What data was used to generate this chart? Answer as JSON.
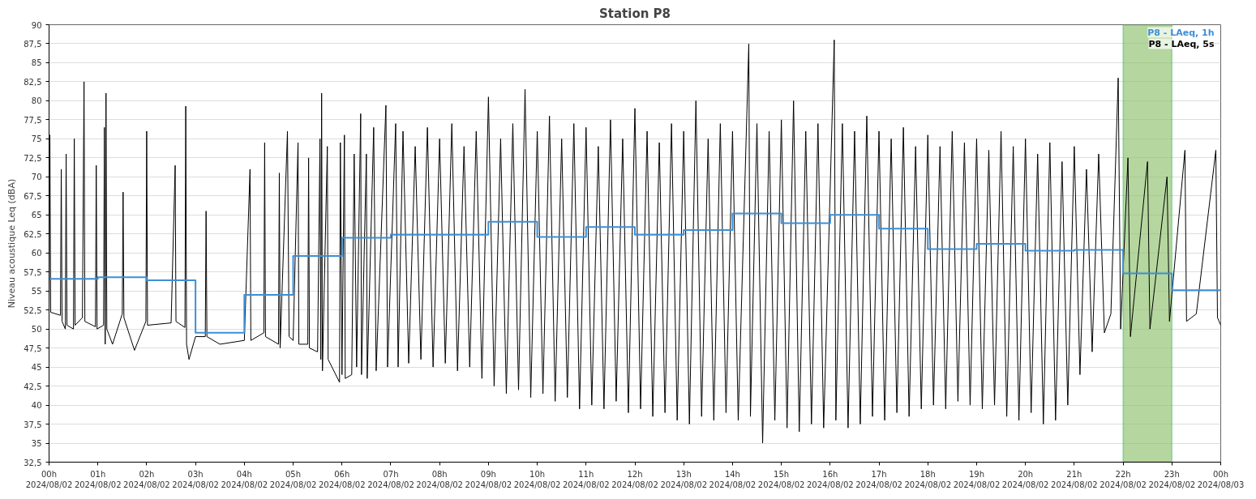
{
  "chart_data": {
    "type": "line",
    "title": "Station P8",
    "ylabel": "Niveau acoustique Leq (dBA)",
    "xlim": [
      "2024-08-02T00:00",
      "2024-08-03T00:00"
    ],
    "ylim": [
      32.5,
      90
    ],
    "xticks": [
      {
        "value": "2024-08-02T00:00",
        "label": "00h\n2024/08/02"
      },
      {
        "value": "2024-08-02T01:00",
        "label": "01h\n2024/08/02"
      },
      {
        "value": "2024-08-02T02:00",
        "label": "02h\n2024/08/02"
      },
      {
        "value": "2024-08-02T03:00",
        "label": "03h\n2024/08/02"
      },
      {
        "value": "2024-08-02T04:00",
        "label": "04h\n2024/08/02"
      },
      {
        "value": "2024-08-02T05:00",
        "label": "05h\n2024/08/02"
      },
      {
        "value": "2024-08-02T06:00",
        "label": "06h\n2024/08/02"
      },
      {
        "value": "2024-08-02T07:00",
        "label": "07h\n2024/08/02"
      },
      {
        "value": "2024-08-02T08:00",
        "label": "08h\n2024/08/02"
      },
      {
        "value": "2024-08-02T09:00",
        "label": "09h\n2024/08/02"
      },
      {
        "value": "2024-08-02T10:00",
        "label": "10h\n2024/08/02"
      },
      {
        "value": "2024-08-02T11:00",
        "label": "11h\n2024/08/02"
      },
      {
        "value": "2024-08-02T12:00",
        "label": "12h\n2024/08/02"
      },
      {
        "value": "2024-08-02T13:00",
        "label": "13h\n2024/08/02"
      },
      {
        "value": "2024-08-02T14:00",
        "label": "14h\n2024/08/02"
      },
      {
        "value": "2024-08-02T15:00",
        "label": "15h\n2024/08/02"
      },
      {
        "value": "2024-08-02T16:00",
        "label": "16h\n2024/08/02"
      },
      {
        "value": "2024-08-02T17:00",
        "label": "17h\n2024/08/02"
      },
      {
        "value": "2024-08-02T18:00",
        "label": "18h\n2024/08/02"
      },
      {
        "value": "2024-08-02T19:00",
        "label": "19h\n2024/08/02"
      },
      {
        "value": "2024-08-02T20:00",
        "label": "20h\n2024/08/02"
      },
      {
        "value": "2024-08-02T21:00",
        "label": "21h\n2024/08/02"
      },
      {
        "value": "2024-08-02T22:00",
        "label": "22h\n2024/08/02"
      },
      {
        "value": "2024-08-02T23:00",
        "label": "23h\n2024/08/02"
      },
      {
        "value": "2024-08-03T00:00",
        "label": "00h\n2024/08/03"
      }
    ],
    "yticks": [
      {
        "value": 32.5,
        "label": "32,5"
      },
      35,
      {
        "value": 37.5,
        "label": "37,5"
      },
      40,
      {
        "value": 42.5,
        "label": "42,5"
      },
      45,
      {
        "value": 47.5,
        "label": "47,5"
      },
      50,
      {
        "value": 52.5,
        "label": "52,5"
      },
      55,
      {
        "value": 57.5,
        "label": "57,5"
      },
      60,
      {
        "value": 62.5,
        "label": "62,5"
      },
      65,
      {
        "value": 67.5,
        "label": "67,5"
      },
      70,
      {
        "value": 72.5,
        "label": "72,5"
      },
      75,
      {
        "value": 77.5,
        "label": "77,5"
      },
      80,
      {
        "value": 82.5,
        "label": "82,5"
      },
      85,
      {
        "value": 87.5,
        "label": "87,5"
      },
      90
    ],
    "grid": "y",
    "legend": "top right",
    "line_style": "solid",
    "bands": [
      {
        "axis": "x",
        "from": "2024-08-02T22:00",
        "to": "2024-08-02T23:00",
        "color": "#8dc26c"
      }
    ],
    "series": [
      {
        "name": "P8 - LAeq, 1h",
        "type": "step",
        "color": "#3d8fd6",
        "x": [
          "2024-08-02T00:00",
          "2024-08-02T01:00",
          "2024-08-02T02:00",
          "2024-08-02T03:00",
          "2024-08-02T04:00",
          "2024-08-02T05:00",
          "2024-08-02T06:00",
          "2024-08-02T07:00",
          "2024-08-02T08:00",
          "2024-08-02T09:00",
          "2024-08-02T10:00",
          "2024-08-02T11:00",
          "2024-08-02T12:00",
          "2024-08-02T13:00",
          "2024-08-02T14:00",
          "2024-08-02T15:00",
          "2024-08-02T16:00",
          "2024-08-02T17:00",
          "2024-08-02T18:00",
          "2024-08-02T19:00",
          "2024-08-02T20:00",
          "2024-08-02T21:00",
          "2024-08-02T22:00",
          "2024-08-02T23:00",
          "2024-08-03T00:00"
        ],
        "values": [
          56.6,
          56.8,
          56.4,
          49.5,
          54.5,
          59.6,
          62.0,
          62.4,
          62.4,
          64.1,
          62.1,
          63.4,
          62.4,
          63.0,
          65.2,
          63.9,
          65.0,
          63.2,
          60.5,
          61.2,
          60.3,
          60.4,
          57.3,
          55.1,
          55.1
        ]
      },
      {
        "name": "P8 - LAeq, 5s",
        "color": "#000000",
        "x": [
          "2024-08-02T00:00",
          "2024-08-02T00:01",
          "2024-08-02T00:02",
          "2024-08-02T00:14",
          "2024-08-02T00:15",
          "2024-08-02T00:16",
          "2024-08-02T00:20",
          "2024-08-02T00:21",
          "2024-08-02T00:22",
          "2024-08-02T00:30",
          "2024-08-02T00:31",
          "2024-08-02T00:32",
          "2024-08-02T00:41",
          "2024-08-02T00:43",
          "2024-08-02T00:44",
          "2024-08-02T00:57",
          "2024-08-02T00:58",
          "2024-08-02T00:59",
          "2024-08-02T01:07",
          "2024-08-02T01:08",
          "2024-08-02T01:09",
          "2024-08-02T01:10",
          "2024-08-02T01:11",
          "2024-08-02T01:18",
          "2024-08-02T01:30",
          "2024-08-02T01:31",
          "2024-08-02T01:32",
          "2024-08-02T01:45",
          "2024-08-02T01:59",
          "2024-08-02T02:00",
          "2024-08-02T02:01",
          "2024-08-02T02:30",
          "2024-08-02T02:35",
          "2024-08-02T02:36",
          "2024-08-02T02:47",
          "2024-08-02T02:48",
          "2024-08-02T02:49",
          "2024-08-02T02:52",
          "2024-08-02T03:00",
          "2024-08-02T03:12",
          "2024-08-02T03:13",
          "2024-08-02T03:14",
          "2024-08-02T03:30",
          "2024-08-02T04:00",
          "2024-08-02T04:07",
          "2024-08-02T04:08",
          "2024-08-02T04:24",
          "2024-08-02T04:25",
          "2024-08-02T04:26",
          "2024-08-02T04:42",
          "2024-08-02T04:43",
          "2024-08-02T04:44",
          "2024-08-02T04:53",
          "2024-08-02T04:55",
          "2024-08-02T05:00",
          "2024-08-02T05:06",
          "2024-08-02T05:07",
          "2024-08-02T05:18",
          "2024-08-02T05:19",
          "2024-08-02T05:20",
          "2024-08-02T05:30",
          "2024-08-02T05:33",
          "2024-08-02T05:34",
          "2024-08-02T05:35",
          "2024-08-02T05:36",
          "2024-08-02T05:42",
          "2024-08-02T05:43",
          "2024-08-02T05:57",
          "2024-08-02T05:58",
          "2024-08-02T06:00",
          "2024-08-02T06:03",
          "2024-08-02T06:04",
          "2024-08-02T06:12",
          "2024-08-02T06:15",
          "2024-08-02T06:18",
          "2024-08-02T06:23",
          "2024-08-02T06:24",
          "2024-08-02T06:30",
          "2024-08-02T06:31",
          "2024-08-02T06:39",
          "2024-08-02T06:42",
          "2024-08-02T06:54",
          "2024-08-02T06:56",
          "2024-08-02T07:06",
          "2024-08-02T07:09",
          "2024-08-02T07:15",
          "2024-08-02T07:22",
          "2024-08-02T07:30",
          "2024-08-02T07:37",
          "2024-08-02T07:45",
          "2024-08-02T07:52",
          "2024-08-02T08:00",
          "2024-08-02T08:07",
          "2024-08-02T08:15",
          "2024-08-02T08:22",
          "2024-08-02T08:30",
          "2024-08-02T08:37",
          "2024-08-02T08:45",
          "2024-08-02T08:52",
          "2024-08-02T09:00",
          "2024-08-02T09:07",
          "2024-08-02T09:15",
          "2024-08-02T09:22",
          "2024-08-02T09:30",
          "2024-08-02T09:37",
          "2024-08-02T09:45",
          "2024-08-02T09:52",
          "2024-08-02T10:00",
          "2024-08-02T10:07",
          "2024-08-02T10:15",
          "2024-08-02T10:22",
          "2024-08-02T10:30",
          "2024-08-02T10:37",
          "2024-08-02T10:45",
          "2024-08-02T10:52",
          "2024-08-02T11:00",
          "2024-08-02T11:07",
          "2024-08-02T11:15",
          "2024-08-02T11:22",
          "2024-08-02T11:30",
          "2024-08-02T11:37",
          "2024-08-02T11:45",
          "2024-08-02T11:52",
          "2024-08-02T12:00",
          "2024-08-02T12:07",
          "2024-08-02T12:15",
          "2024-08-02T12:22",
          "2024-08-02T12:30",
          "2024-08-02T12:37",
          "2024-08-02T12:45",
          "2024-08-02T12:52",
          "2024-08-02T13:00",
          "2024-08-02T13:07",
          "2024-08-02T13:15",
          "2024-08-02T13:22",
          "2024-08-02T13:30",
          "2024-08-02T13:37",
          "2024-08-02T13:45",
          "2024-08-02T13:52",
          "2024-08-02T14:00",
          "2024-08-02T14:07",
          "2024-08-02T14:20",
          "2024-08-02T14:22",
          "2024-08-02T14:30",
          "2024-08-02T14:37",
          "2024-08-02T14:45",
          "2024-08-02T14:52",
          "2024-08-02T15:00",
          "2024-08-02T15:07",
          "2024-08-02T15:15",
          "2024-08-02T15:22",
          "2024-08-02T15:30",
          "2024-08-02T15:37",
          "2024-08-02T15:45",
          "2024-08-02T15:52",
          "2024-08-02T16:05",
          "2024-08-02T16:07",
          "2024-08-02T16:15",
          "2024-08-02T16:22",
          "2024-08-02T16:30",
          "2024-08-02T16:37",
          "2024-08-02T16:45",
          "2024-08-02T16:52",
          "2024-08-02T17:00",
          "2024-08-02T17:07",
          "2024-08-02T17:15",
          "2024-08-02T17:22",
          "2024-08-02T17:30",
          "2024-08-02T17:37",
          "2024-08-02T17:45",
          "2024-08-02T17:52",
          "2024-08-02T18:00",
          "2024-08-02T18:07",
          "2024-08-02T18:15",
          "2024-08-02T18:22",
          "2024-08-02T18:30",
          "2024-08-02T18:37",
          "2024-08-02T18:45",
          "2024-08-02T18:52",
          "2024-08-02T19:00",
          "2024-08-02T19:07",
          "2024-08-02T19:15",
          "2024-08-02T19:22",
          "2024-08-02T19:30",
          "2024-08-02T19:37",
          "2024-08-02T19:45",
          "2024-08-02T19:52",
          "2024-08-02T20:00",
          "2024-08-02T20:07",
          "2024-08-02T20:15",
          "2024-08-02T20:22",
          "2024-08-02T20:30",
          "2024-08-02T20:37",
          "2024-08-02T20:45",
          "2024-08-02T20:52",
          "2024-08-02T21:00",
          "2024-08-02T21:07",
          "2024-08-02T21:15",
          "2024-08-02T21:22",
          "2024-08-02T21:30",
          "2024-08-02T21:37",
          "2024-08-02T21:45",
          "2024-08-02T21:54",
          "2024-08-02T21:57",
          "2024-08-02T22:06",
          "2024-08-02T22:09",
          "2024-08-02T22:30",
          "2024-08-02T22:33",
          "2024-08-02T22:54",
          "2024-08-02T22:57",
          "2024-08-02T23:16",
          "2024-08-02T23:18",
          "2024-08-02T23:30",
          "2024-08-02T23:54",
          "2024-08-02T23:56",
          "2024-08-03T00:00"
        ],
        "values": [
          52,
          75.5,
          52.2,
          51.8,
          71,
          51,
          50,
          73,
          50.5,
          50,
          75,
          50.5,
          51.5,
          82.5,
          51,
          50.3,
          71.5,
          50,
          50.5,
          76.5,
          48,
          81,
          50,
          48,
          52,
          68,
          51.5,
          47.2,
          51,
          76,
          50.5,
          50.8,
          71.5,
          51,
          50.2,
          79.3,
          48,
          46,
          49,
          49,
          65.5,
          49,
          48,
          48.5,
          71,
          48.5,
          49.5,
          74.5,
          49,
          48,
          70.5,
          47.5,
          76,
          49,
          48.5,
          74.5,
          48,
          48,
          72.5,
          47.5,
          47,
          75,
          46,
          81,
          44.5,
          74,
          46,
          43,
          74.5,
          44,
          75.5,
          43.5,
          44,
          73,
          45,
          78.3,
          44,
          73,
          43.5,
          76.5,
          44.5,
          79.4,
          45,
          77,
          45,
          76,
          45.5,
          74,
          46,
          76.5,
          45,
          75,
          45.5,
          77,
          44.5,
          74,
          45,
          76,
          43.5,
          80.5,
          42.5,
          75,
          41.5,
          77,
          42,
          81.5,
          41,
          76,
          41.5,
          78,
          40.5,
          75,
          41,
          77,
          39.5,
          76.5,
          40,
          74,
          39.5,
          77.5,
          40.5,
          75,
          39,
          79,
          39.5,
          76,
          38.5,
          74.5,
          39,
          77,
          38,
          76,
          37.5,
          80,
          38.5,
          75,
          38,
          77,
          39,
          76,
          38,
          87.5,
          38.5,
          77,
          35,
          76,
          38,
          77.5,
          37,
          80,
          36.5,
          76,
          37.5,
          77,
          37,
          88,
          38,
          77,
          37,
          76,
          37.5,
          78,
          38.5,
          76,
          38,
          75,
          39,
          76.5,
          38.5,
          74,
          39.5,
          75.5,
          40,
          74,
          39.5,
          76,
          40.5,
          74.5,
          40,
          75,
          39.5,
          73.5,
          40,
          76,
          38.5,
          74,
          38,
          75,
          39,
          73,
          37.5,
          74.5,
          38,
          72,
          40,
          74,
          44,
          71,
          47,
          73,
          49.5,
          52,
          83,
          50,
          72.5,
          49,
          72,
          50,
          70,
          51,
          73.5,
          51,
          52,
          73.5,
          51.5,
          50.5
        ]
      }
    ]
  }
}
